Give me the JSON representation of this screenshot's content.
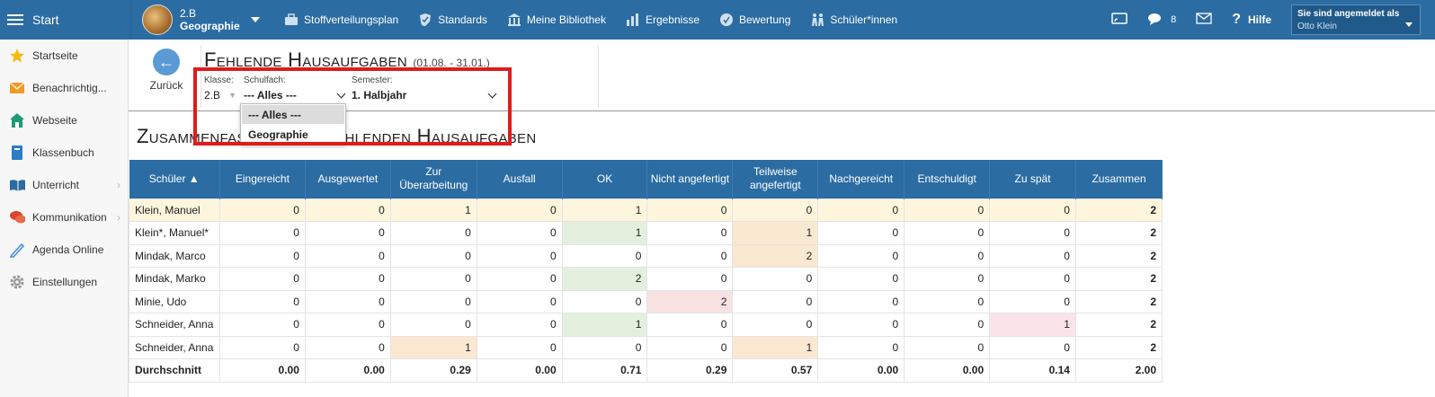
{
  "topbar": {
    "start_label": "Start",
    "course": {
      "class": "2.B",
      "subject": "Geographie"
    },
    "nav": [
      {
        "label": "Stoffverteilungsplan",
        "icon": "briefcase-icon"
      },
      {
        "label": "Standards",
        "icon": "shield-icon"
      },
      {
        "label": "Meine Bibliothek",
        "icon": "library-icon"
      },
      {
        "label": "Ergebnisse",
        "icon": "bar-chart-icon"
      },
      {
        "label": "Bewertung",
        "icon": "rating-icon"
      },
      {
        "label": "Schüler*innen",
        "icon": "students-icon"
      }
    ],
    "message_count": "8",
    "help_label": "Hilfe",
    "login_title": "Sie sind angemeldet als",
    "login_user": "Otto Klein"
  },
  "sidebar": {
    "items": [
      {
        "label": "Startseite",
        "icon": "star-icon"
      },
      {
        "label": "Benachrichtig...",
        "icon": "envelope-icon"
      },
      {
        "label": "Webseite",
        "icon": "home-icon"
      },
      {
        "label": "Klassenbuch",
        "icon": "book-icon"
      },
      {
        "label": "Unterricht",
        "icon": "open-book-icon"
      },
      {
        "label": "Kommunikation",
        "icon": "chat-icon"
      },
      {
        "label": "Agenda Online",
        "icon": "pen-icon"
      },
      {
        "label": "Einstellungen",
        "icon": "gear-icon"
      }
    ]
  },
  "header": {
    "back_label": "Zurück",
    "title": "Fehlende Hausaufgaben",
    "date_range": "(01.08. - 31.01.)",
    "filters": {
      "class_label": "Klasse:",
      "class_value": "2.B",
      "subject_label": "Schulfach:",
      "subject_value": "--- Alles ---",
      "semester_label": "Semester:",
      "semester_value": "1. Halbjahr"
    },
    "dropdown_options": [
      "--- Alles ---",
      "Geographie"
    ]
  },
  "section_title": "Zusammenfassung der fehlenden Hausaufgaben",
  "table": {
    "headers": [
      "Schüler ▲",
      "Eingereicht",
      "Ausgewertet",
      "Zur Überarbeitung",
      "Ausfall",
      "OK",
      "Nicht angefertigt",
      "Teilweise angefertigt",
      "Nachgereicht",
      "Entschuldigt",
      "Zu spät",
      "Zusammen"
    ],
    "rows": [
      [
        "Klein, Manuel",
        "0",
        "0",
        "1",
        "0",
        "1",
        "0",
        "0",
        "0",
        "0",
        "0",
        "2"
      ],
      [
        "Klein*, Manuel*",
        "0",
        "0",
        "0",
        "0",
        "1",
        "0",
        "1",
        "0",
        "0",
        "0",
        "2"
      ],
      [
        "Mindak, Marco",
        "0",
        "0",
        "0",
        "0",
        "0",
        "0",
        "2",
        "0",
        "0",
        "0",
        "2"
      ],
      [
        "Mindak, Marko",
        "0",
        "0",
        "0",
        "0",
        "2",
        "0",
        "0",
        "0",
        "0",
        "0",
        "2"
      ],
      [
        "Minie, Udo",
        "0",
        "0",
        "0",
        "0",
        "0",
        "2",
        "0",
        "0",
        "0",
        "0",
        "2"
      ],
      [
        "Schneider, Anna",
        "0",
        "0",
        "0",
        "0",
        "1",
        "0",
        "0",
        "0",
        "0",
        "1",
        "2"
      ],
      [
        "Schneider, Anna",
        "0",
        "0",
        "1",
        "0",
        "0",
        "0",
        "1",
        "0",
        "0",
        "0",
        "2"
      ]
    ],
    "average": [
      "Durchschnitt",
      "0.00",
      "0.00",
      "0.29",
      "0.00",
      "0.71",
      "0.29",
      "0.57",
      "0.00",
      "0.00",
      "0.14",
      "2.00"
    ]
  }
}
